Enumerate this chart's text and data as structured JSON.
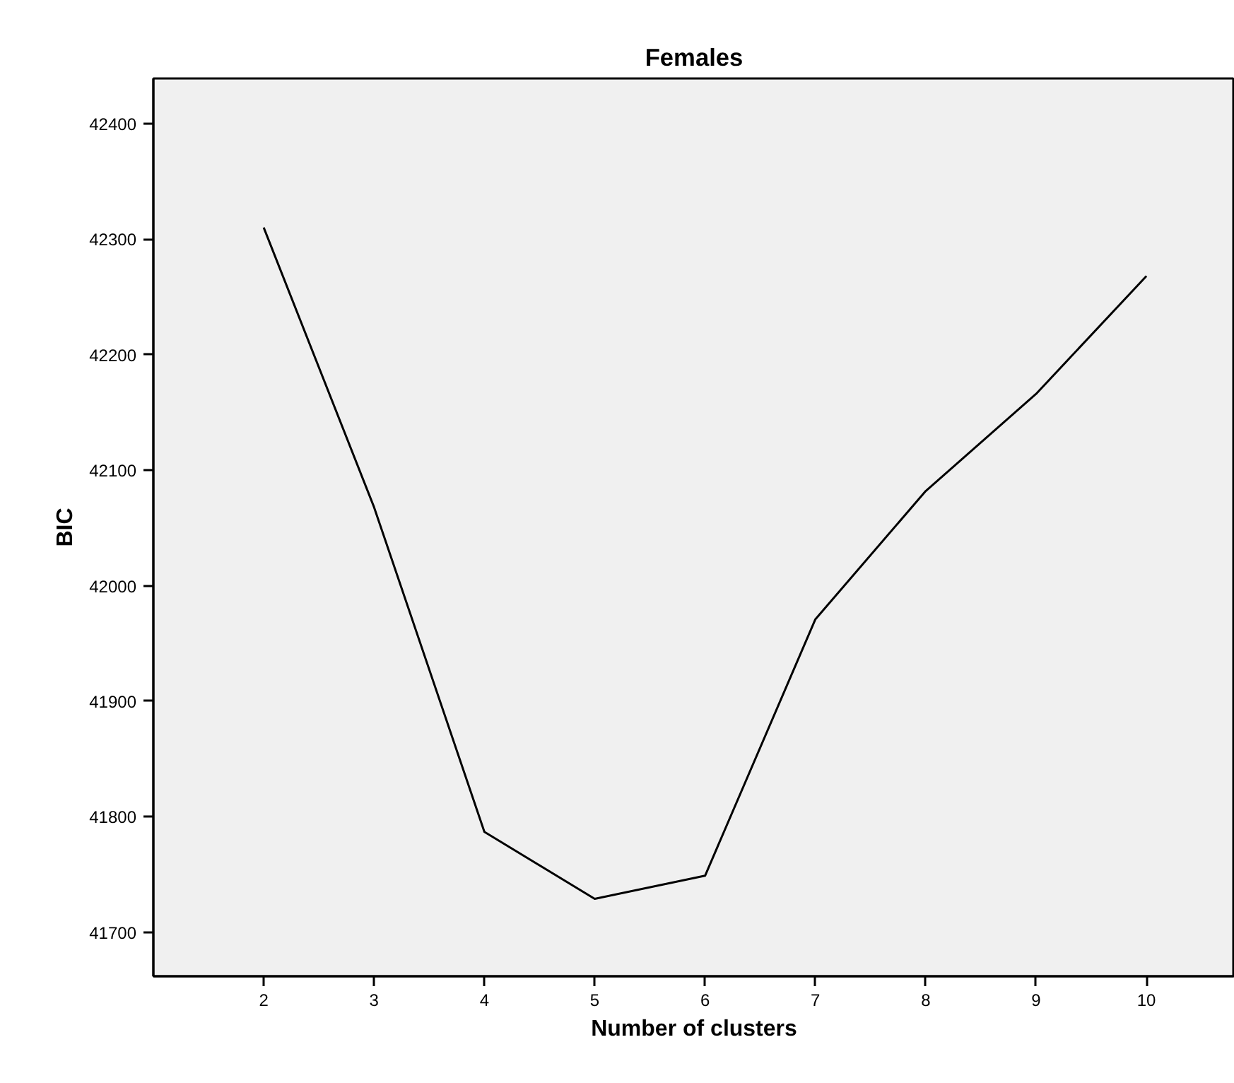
{
  "chart_data": {
    "type": "line",
    "title": "Females",
    "xlabel": "Number of clusters",
    "ylabel": "BIC",
    "x": [
      2,
      3,
      4,
      5,
      6,
      7,
      8,
      9,
      10
    ],
    "series": [
      {
        "color": "#000000",
        "values": [
          42310,
          42068,
          41787,
          41729,
          41749,
          41971,
          42082,
          42166,
          42268
        ]
      }
    ],
    "xlim": [
      1,
      10.8
    ],
    "ylim": [
      41662,
      42439
    ],
    "xticks": [
      2,
      3,
      4,
      5,
      6,
      7,
      8,
      9,
      10
    ],
    "yticks": [
      41700,
      41800,
      41900,
      42000,
      42100,
      42200,
      42300,
      42400
    ],
    "grid": false,
    "marker": "none",
    "line_style": "solid"
  }
}
